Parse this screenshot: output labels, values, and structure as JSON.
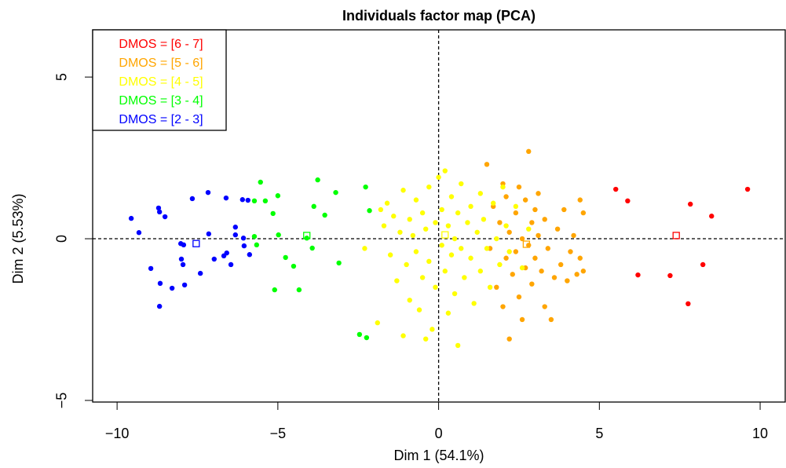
{
  "chart_data": {
    "type": "scatter",
    "title": "Individuals factor map (PCA)",
    "xlabel": "Dim 1 (54.1%)",
    "ylabel": "Dim 2 (5.53%)",
    "xlim": [
      -10.76,
      10.78
    ],
    "ylim": [
      -5.05,
      6.46
    ],
    "xticks": [
      {
        "value": -10,
        "label": "−10"
      },
      {
        "value": -5,
        "label": "−5"
      },
      0,
      5,
      10
    ],
    "yticks": [
      {
        "value": -5,
        "label": "−5"
      },
      0,
      5
    ],
    "reference_lines": {
      "x": 0,
      "y": 0
    },
    "legend": "top-left",
    "series": [
      {
        "name": "DMOS = [6 - 7]",
        "color": "#ff0000",
        "x": [
          5.51,
          5.88,
          6.2,
          7.2,
          7.76,
          7.83,
          8.22,
          8.49,
          9.61
        ],
        "y": [
          1.53,
          1.17,
          -1.12,
          -1.14,
          -2.01,
          1.07,
          -0.8,
          0.7,
          1.53
        ],
        "centroid": {
          "x": 7.39,
          "y": 0.1
        }
      },
      {
        "name": "DMOS = [5 - 6]",
        "color": "#ffa500",
        "x": [
          1.5,
          1.6,
          1.7,
          1.8,
          1.9,
          2.0,
          2.1,
          2.1,
          2.2,
          2.2,
          2.3,
          2.4,
          2.4,
          2.5,
          2.5,
          2.6,
          2.7,
          2.7,
          2.8,
          2.8,
          2.9,
          2.9,
          3.0,
          3.1,
          3.1,
          3.2,
          3.3,
          3.3,
          3.4,
          3.5,
          3.6,
          3.7,
          3.8,
          3.9,
          4.0,
          4.1,
          4.2,
          4.3,
          4.4,
          4.4,
          4.5,
          4.5,
          2.6,
          3.0,
          2.0
        ],
        "y": [
          2.3,
          -0.3,
          1.0,
          -1.5,
          0.5,
          -2.1,
          1.3,
          -0.6,
          0.2,
          -3.1,
          -1.1,
          0.8,
          -0.4,
          1.6,
          -1.8,
          0.0,
          -0.9,
          1.2,
          2.7,
          -0.2,
          0.5,
          -1.4,
          -0.6,
          1.4,
          0.1,
          -1.0,
          -2.1,
          0.6,
          -0.3,
          -2.5,
          -1.2,
          0.3,
          -0.8,
          0.9,
          -1.3,
          -0.4,
          0.1,
          -1.1,
          1.2,
          -0.6,
          -1.0,
          0.8,
          -2.5,
          0.9,
          1.7
        ],
        "centroid": {
          "x": 2.73,
          "y": -0.17
        }
      },
      {
        "name": "DMOS = [4 - 5]",
        "color": "#ffff00",
        "x": [
          -1.9,
          -1.8,
          -1.7,
          -1.6,
          -1.5,
          -1.4,
          -1.3,
          -1.2,
          -1.1,
          -1.0,
          -0.9,
          -0.9,
          -0.8,
          -0.7,
          -0.7,
          -0.6,
          -0.5,
          -0.5,
          -0.4,
          -0.3,
          -0.3,
          -0.2,
          -0.1,
          -0.1,
          0.0,
          0.1,
          0.1,
          0.2,
          0.2,
          0.3,
          0.3,
          0.4,
          0.4,
          0.5,
          0.5,
          0.6,
          0.7,
          0.7,
          0.8,
          0.9,
          1.0,
          1.0,
          1.1,
          1.2,
          1.3,
          1.3,
          1.4,
          1.5,
          1.6,
          1.7,
          1.8,
          1.9,
          2.0,
          2.1,
          2.2,
          2.4,
          2.6,
          2.8,
          -2.3,
          -1.1,
          -0.4,
          0.6
        ],
        "y": [
          -2.6,
          0.9,
          0.4,
          1.1,
          -0.5,
          0.7,
          -1.3,
          0.2,
          1.5,
          -0.8,
          0.6,
          -1.9,
          0.1,
          1.2,
          -0.4,
          -2.2,
          0.8,
          -1.2,
          0.3,
          1.6,
          -0.7,
          -2.8,
          0.5,
          -1.5,
          1.9,
          -0.2,
          0.9,
          2.1,
          -1.0,
          0.4,
          -2.3,
          1.3,
          -0.5,
          0.0,
          -1.7,
          0.8,
          1.7,
          -0.3,
          -1.2,
          0.5,
          1.0,
          -0.6,
          -2.0,
          0.2,
          1.4,
          -1.0,
          0.6,
          -0.3,
          -1.5,
          1.1,
          0.0,
          -0.8,
          1.6,
          0.4,
          -0.4,
          1.0,
          -0.9,
          0.3,
          -0.3,
          -3.0,
          -3.1,
          -3.3
        ],
        "centroid": {
          "x": 0.2,
          "y": 0.12
        }
      },
      {
        "name": "DMOS = [3 - 4]",
        "color": "#00ff00",
        "x": [
          -5.54,
          -5.73,
          -5.73,
          -5.39,
          -5.66,
          -5.15,
          -5.0,
          -4.98,
          -5.1,
          -4.76,
          -4.51,
          -4.34,
          -4.1,
          -3.93,
          -3.88,
          -3.76,
          -3.54,
          -3.2,
          -3.1,
          -2.46,
          -2.27,
          -2.24,
          -2.15
        ],
        "y": [
          1.75,
          1.17,
          0.07,
          1.17,
          -0.19,
          0.78,
          1.33,
          0.12,
          -1.58,
          -0.58,
          -0.85,
          -1.58,
          0.02,
          -0.29,
          1.0,
          1.82,
          0.73,
          1.43,
          -0.75,
          -2.96,
          1.6,
          -3.06,
          0.87
        ],
        "centroid": {
          "x": -4.1,
          "y": 0.1
        }
      },
      {
        "name": "DMOS = [2 - 3]",
        "color": "#0000ff",
        "x": [
          -9.56,
          -9.32,
          -8.71,
          -8.68,
          -8.51,
          -8.95,
          -8.66,
          -8.68,
          -8.29,
          -8.02,
          -7.93,
          -8.0,
          -7.95,
          -7.9,
          -7.66,
          -7.41,
          -7.17,
          -7.15,
          -6.98,
          -6.68,
          -6.61,
          -6.59,
          -6.32,
          -6.32,
          -6.1,
          -6.05,
          -6.07,
          -5.93,
          -5.88,
          -6.46
        ],
        "y": [
          0.63,
          0.19,
          0.95,
          0.83,
          0.68,
          -0.92,
          -1.38,
          -2.09,
          -1.53,
          -0.15,
          -0.19,
          -0.63,
          -0.8,
          -1.43,
          1.24,
          -1.07,
          1.43,
          0.15,
          -0.63,
          -0.53,
          1.26,
          -0.44,
          0.12,
          0.36,
          1.21,
          -0.22,
          0.02,
          1.19,
          -0.49,
          -0.8
        ],
        "centroid": {
          "x": -7.54,
          "y": -0.15
        }
      }
    ]
  }
}
